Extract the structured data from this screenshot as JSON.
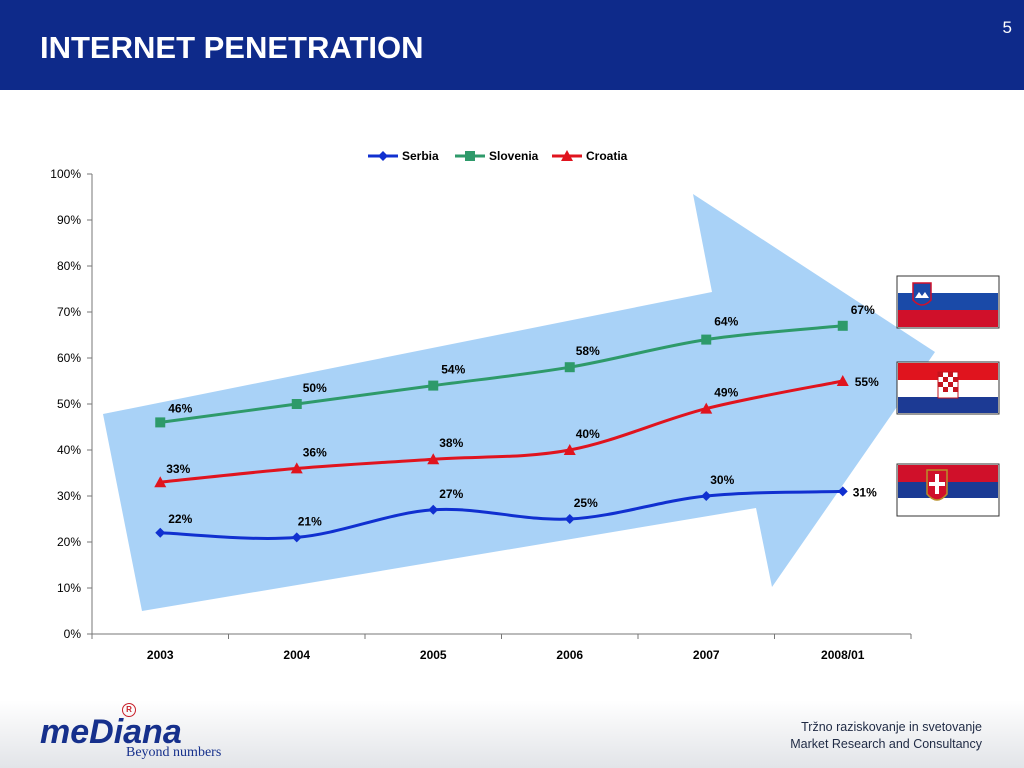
{
  "header": {
    "title": "INTERNET PENETRATION",
    "slide_number": "5",
    "background_color": "#0e2a8a"
  },
  "chart_data": {
    "type": "line",
    "title": "",
    "xlabel": "",
    "ylabel": "",
    "categories": [
      "2003",
      "2004",
      "2005",
      "2006",
      "2007",
      "2008/01"
    ],
    "y_ticks": [
      "0%",
      "10%",
      "20%",
      "30%",
      "40%",
      "50%",
      "60%",
      "70%",
      "80%",
      "90%",
      "100%"
    ],
    "ylim": [
      0,
      100
    ],
    "grid": false,
    "legend_position": "top",
    "series": [
      {
        "name": "Serbia",
        "values": [
          22,
          21,
          27,
          25,
          30,
          31
        ],
        "labels": [
          "22%",
          "21%",
          "27%",
          "25%",
          "30%",
          "31%"
        ],
        "color": "#1030d0",
        "marker": "diamond"
      },
      {
        "name": "Slovenia",
        "values": [
          46,
          50,
          54,
          58,
          64,
          67
        ],
        "labels": [
          "46%",
          "50%",
          "54%",
          "58%",
          "64%",
          "67%"
        ],
        "color": "#2e9a6a",
        "marker": "square"
      },
      {
        "name": "Croatia",
        "values": [
          33,
          36,
          38,
          40,
          49,
          55
        ],
        "labels": [
          "33%",
          "36%",
          "38%",
          "40%",
          "49%",
          "55%"
        ],
        "color": "#e0141e",
        "marker": "triangle"
      }
    ],
    "background_arrow_color": "#a9d2f7",
    "flags": [
      "slovenia-flag",
      "croatia-flag",
      "serbia-flag"
    ]
  },
  "footer": {
    "logo_word": "meDiana",
    "logo_registered": "R",
    "logo_tagline": "Beyond numbers",
    "company_line_sl": "Tržno raziskovanje in svetovanje",
    "company_line_en": "Market Research and Consultancy",
    "brand_color": "#16308c"
  }
}
